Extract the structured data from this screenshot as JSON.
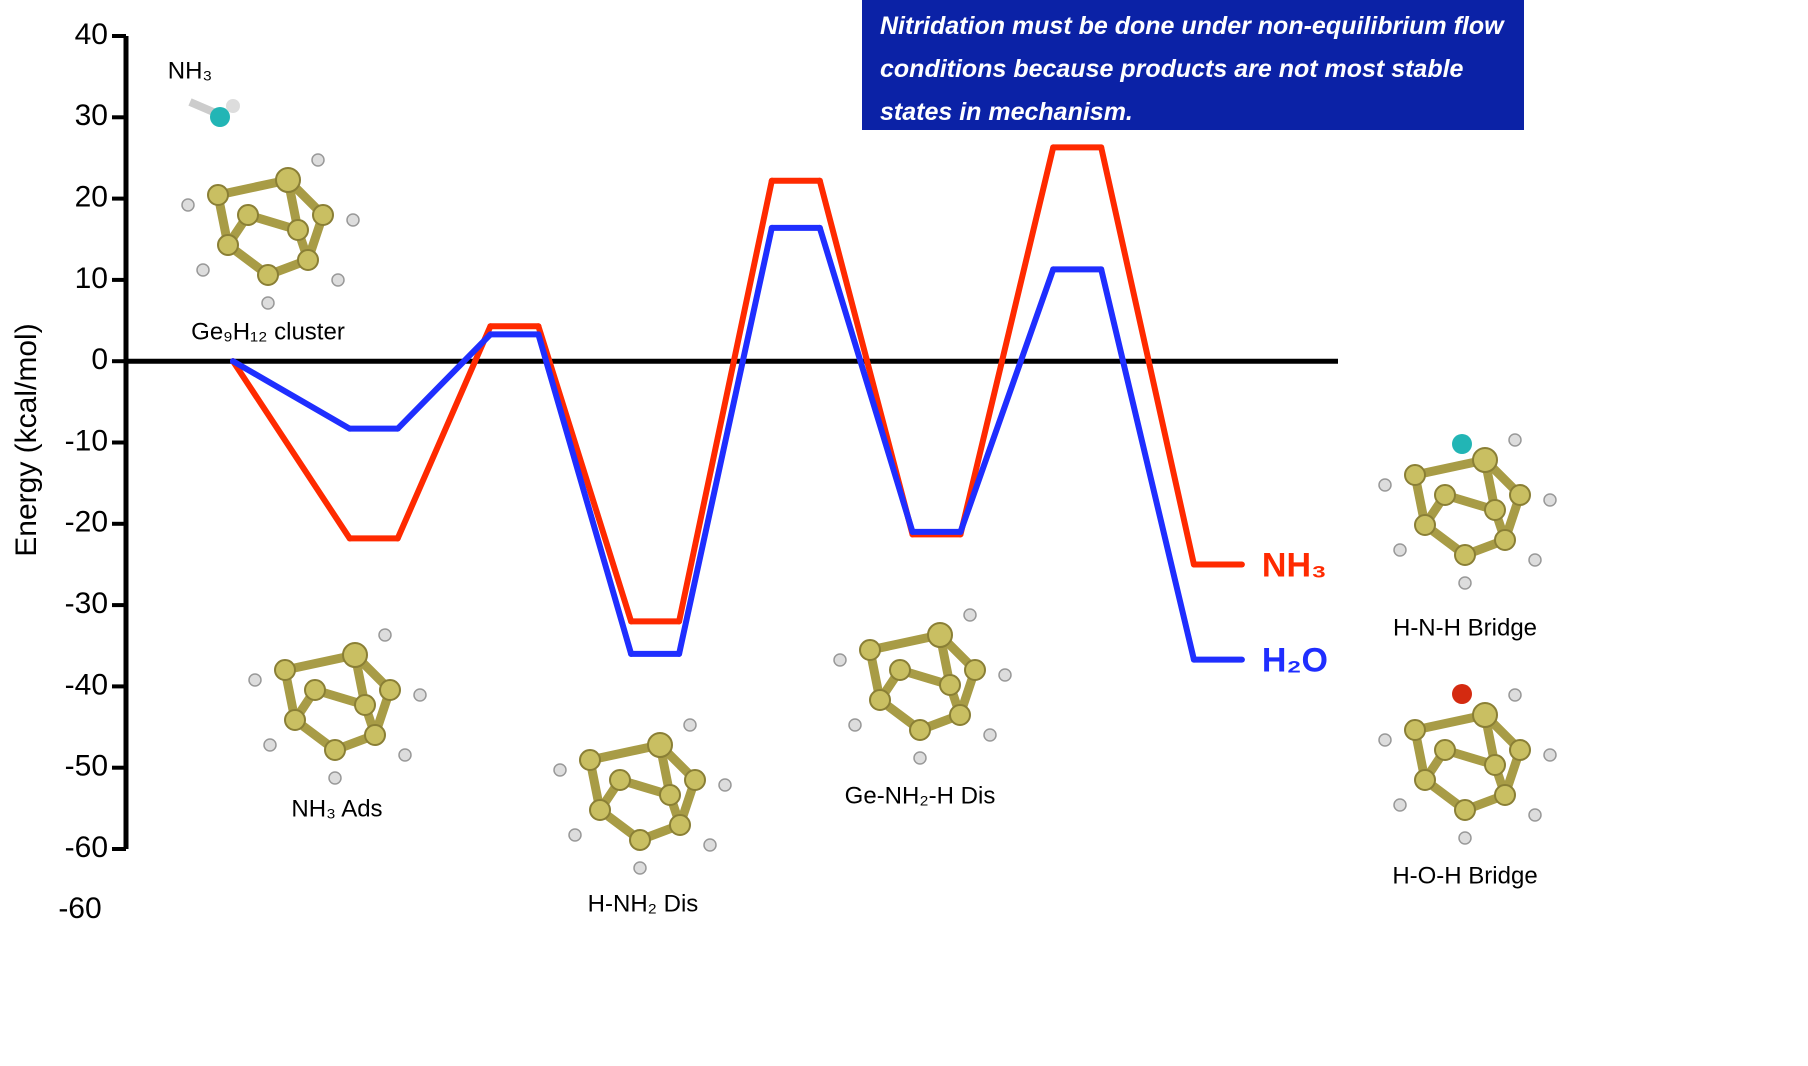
{
  "chart_data": {
    "type": "line",
    "y_label": "Energy (kcal/mol)",
    "categories": [
      "Ge₉H₁₂ cluster",
      "NH₃ Ads",
      null,
      "H-NH₂ Dis",
      null,
      "Ge-NH₂-H Dis",
      null,
      null
    ],
    "series": [
      {
        "name": "NH₃",
        "color": "#ff2a00",
        "values": [
          0,
          -21.8,
          4.3,
          -32,
          22.2,
          -21.3,
          26.3,
          -25
        ]
      },
      {
        "name": "H₂O",
        "color": "#1f2eff",
        "values": [
          0,
          -8.3,
          3.3,
          -36,
          16.4,
          -21,
          11.3,
          -36.7
        ]
      }
    ],
    "ylim": [
      -60,
      40
    ],
    "yticks": [
      -60,
      -50,
      -40,
      -30,
      -20,
      -10,
      0,
      10,
      20,
      30,
      40
    ],
    "annotations": [
      "NH₃",
      "H-N-H Bridge",
      "H-O-H Bridge",
      "-60"
    ],
    "note": "Nitridation must be done under non-equilibrium flow conditions because products are not most stable states in mechanism."
  }
}
